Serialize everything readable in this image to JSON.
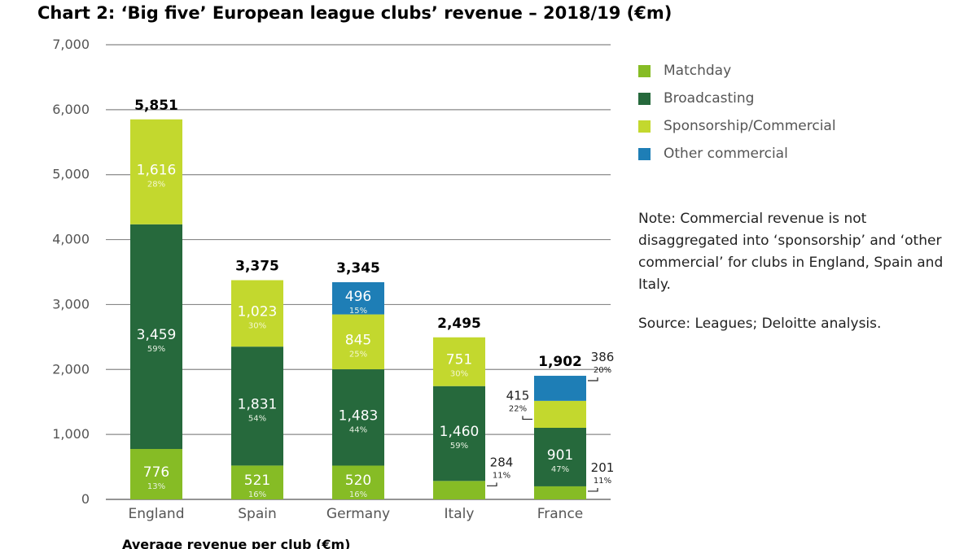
{
  "chart_data": {
    "type": "bar",
    "stacked": true,
    "title": "Chart 2: ‘Big five’ European league clubs’ revenue – 2018/19 (€m)",
    "xlabel": "Average revenue per club (€m)",
    "ylabel": "",
    "ylim": [
      0,
      7000
    ],
    "yticks": [
      "0",
      "1,000",
      "2,000",
      "3,000",
      "4,000",
      "5,000",
      "6,000",
      "7,000"
    ],
    "grid": true,
    "legend_position": "right",
    "categories": [
      "England",
      "Spain",
      "Germany",
      "Italy",
      "France"
    ],
    "totals": [
      "5,851",
      "3,375",
      "3,345",
      "2,495",
      "1,902"
    ],
    "total_values": [
      5851,
      3375,
      3345,
      2495,
      1902
    ],
    "series": [
      {
        "name": "Matchday",
        "color": "#86bc25",
        "values": [
          776,
          521,
          520,
          284,
          201
        ],
        "value_labels": [
          "776",
          "521",
          "520",
          "284",
          "201"
        ],
        "pct_labels": [
          "13%",
          "16%",
          "16%",
          "11%",
          "11%"
        ]
      },
      {
        "name": "Broadcasting",
        "color": "#26693c",
        "values": [
          3459,
          1831,
          1483,
          1460,
          901
        ],
        "value_labels": [
          "3,459",
          "1,831",
          "1,483",
          "1,460",
          "901"
        ],
        "pct_labels": [
          "59%",
          "54%",
          "44%",
          "59%",
          "47%"
        ]
      },
      {
        "name": "Sponsorship/Commercial",
        "color": "#c3d82e",
        "values": [
          1616,
          1023,
          845,
          751,
          415
        ],
        "value_labels": [
          "1,616",
          "1,023",
          "845",
          "751",
          "415"
        ],
        "pct_labels": [
          "28%",
          "30%",
          "25%",
          "30%",
          "22%"
        ]
      },
      {
        "name": "Other commercial",
        "color": "#1e7eb6",
        "values": [
          0,
          0,
          496,
          0,
          386
        ],
        "value_labels": [
          "",
          "",
          "496",
          "",
          "386"
        ],
        "pct_labels": [
          "",
          "",
          "15%",
          "",
          "20%"
        ]
      }
    ],
    "outside_labels": [
      {
        "category": "Italy",
        "series": "Matchday",
        "side": "right"
      },
      {
        "category": "France",
        "series": "Matchday",
        "side": "right"
      },
      {
        "category": "France",
        "series": "Sponsorship/Commercial",
        "side": "left"
      },
      {
        "category": "France",
        "series": "Other commercial",
        "side": "right"
      }
    ]
  },
  "legend": {
    "items": [
      {
        "label": "Matchday",
        "color": "#86bc25"
      },
      {
        "label": "Broadcasting",
        "color": "#26693c"
      },
      {
        "label": "Sponsorship/Commercial",
        "color": "#c3d82e"
      },
      {
        "label": "Other commercial",
        "color": "#1e7eb6"
      }
    ]
  },
  "note": "Note: Commercial revenue is not disaggregated into ‘sponsorship’ and ‘other commercial’ for clubs in England, Spain and Italy.",
  "source": "Source: Leagues; Deloitte analysis."
}
